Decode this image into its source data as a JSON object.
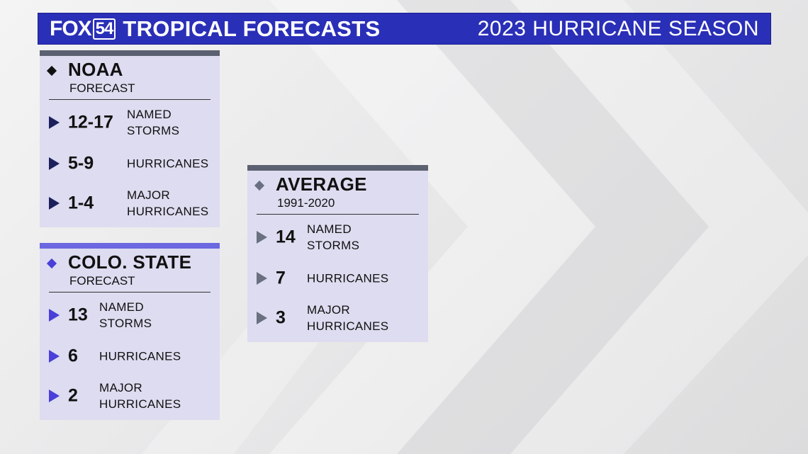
{
  "header": {
    "logo_fox": "FOX",
    "logo_num": "54",
    "title": "TROPICAL FORECASTS",
    "season": "2023 HURRICANE SEASON"
  },
  "colors": {
    "banner": "#2a2fb8",
    "noaa_accent": "#5b6170",
    "csu_accent": "#6b68e0",
    "avg_accent": "#5b6170"
  },
  "icons": [
    "diamond-icon",
    "triangle-bullet-icon"
  ],
  "noaa": {
    "title": "NOAA",
    "subtitle": "FORECAST",
    "rows": [
      {
        "value": "12-17",
        "label_1": "NAMED",
        "label_2": "STORMS"
      },
      {
        "value": "5-9",
        "label_1": "HURRICANES",
        "label_2": ""
      },
      {
        "value": "1-4",
        "label_1": "MAJOR",
        "label_2": "HURRICANES"
      }
    ]
  },
  "csu": {
    "title": "COLO. STATE",
    "subtitle": "FORECAST",
    "rows": [
      {
        "value": "13",
        "label_1": "NAMED",
        "label_2": "STORMS"
      },
      {
        "value": "6",
        "label_1": "HURRICANES",
        "label_2": ""
      },
      {
        "value": "2",
        "label_1": "MAJOR",
        "label_2": "HURRICANES"
      }
    ]
  },
  "average": {
    "title": "AVERAGE",
    "subtitle": "1991-2020",
    "rows": [
      {
        "value": "14",
        "label_1": "NAMED",
        "label_2": "STORMS"
      },
      {
        "value": "7",
        "label_1": "HURRICANES",
        "label_2": ""
      },
      {
        "value": "3",
        "label_1": "MAJOR",
        "label_2": "HURRICANES"
      }
    ]
  }
}
